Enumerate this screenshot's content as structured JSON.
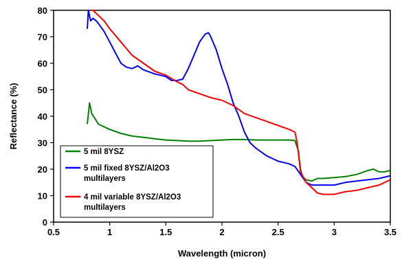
{
  "chart_data": {
    "type": "line",
    "title": "",
    "xlabel": "Wavelength (micron)",
    "ylabel": "Reflectance (%)",
    "xlim": [
      0.5,
      3.5
    ],
    "ylim": [
      0,
      80
    ],
    "xticks": [
      0.5,
      1,
      1.5,
      2,
      2.5,
      3,
      3.5
    ],
    "xtick_labels": [
      "0.5",
      "1",
      "1.5",
      "2",
      "2.5",
      "3",
      "3.5"
    ],
    "yticks": [
      0,
      10,
      20,
      30,
      40,
      50,
      60,
      70,
      80
    ],
    "ytick_labels": [
      "0",
      "10",
      "20",
      "30",
      "40",
      "50",
      "60",
      "70",
      "80"
    ],
    "grid": false,
    "legend_position": "bottom-left",
    "series": [
      {
        "name": "5 mil 8YSZ",
        "color": "#008000",
        "points": [
          [
            0.8,
            37
          ],
          [
            0.82,
            45
          ],
          [
            0.84,
            41
          ],
          [
            0.87,
            39
          ],
          [
            0.9,
            37
          ],
          [
            1.0,
            35
          ],
          [
            1.1,
            33.5
          ],
          [
            1.2,
            32.5
          ],
          [
            1.3,
            32
          ],
          [
            1.4,
            31.5
          ],
          [
            1.5,
            31
          ],
          [
            1.6,
            30.8
          ],
          [
            1.7,
            30.6
          ],
          [
            1.8,
            30.6
          ],
          [
            1.9,
            30.8
          ],
          [
            2.0,
            31
          ],
          [
            2.1,
            31.2
          ],
          [
            2.2,
            31.2
          ],
          [
            2.3,
            31
          ],
          [
            2.4,
            31
          ],
          [
            2.5,
            31
          ],
          [
            2.6,
            31
          ],
          [
            2.65,
            30.8
          ],
          [
            2.68,
            27
          ],
          [
            2.7,
            20
          ],
          [
            2.72,
            17
          ],
          [
            2.75,
            16
          ],
          [
            2.8,
            15.5
          ],
          [
            2.85,
            16.5
          ],
          [
            2.9,
            16.5
          ],
          [
            3.0,
            16.8
          ],
          [
            3.1,
            17.2
          ],
          [
            3.2,
            18
          ],
          [
            3.3,
            19.5
          ],
          [
            3.35,
            20
          ],
          [
            3.4,
            19
          ],
          [
            3.45,
            19
          ],
          [
            3.5,
            19.5
          ]
        ]
      },
      {
        "name": "5 mil fixed 8YSZ/Al2O3 multilayers",
        "color": "#0000FF",
        "points": [
          [
            0.8,
            73
          ],
          [
            0.81,
            80
          ],
          [
            0.83,
            76
          ],
          [
            0.85,
            77
          ],
          [
            0.88,
            76
          ],
          [
            0.9,
            75
          ],
          [
            0.95,
            72
          ],
          [
            1.0,
            68
          ],
          [
            1.05,
            64
          ],
          [
            1.1,
            60
          ],
          [
            1.15,
            58.5
          ],
          [
            1.2,
            58
          ],
          [
            1.25,
            59
          ],
          [
            1.3,
            57.5
          ],
          [
            1.4,
            56
          ],
          [
            1.5,
            55
          ],
          [
            1.55,
            53.5
          ],
          [
            1.6,
            53.5
          ],
          [
            1.65,
            54
          ],
          [
            1.7,
            58
          ],
          [
            1.75,
            63
          ],
          [
            1.8,
            68
          ],
          [
            1.85,
            71
          ],
          [
            1.88,
            71.5
          ],
          [
            1.9,
            70
          ],
          [
            1.95,
            65
          ],
          [
            2.0,
            58
          ],
          [
            2.05,
            52
          ],
          [
            2.1,
            45
          ],
          [
            2.15,
            40
          ],
          [
            2.2,
            34
          ],
          [
            2.25,
            30
          ],
          [
            2.3,
            28
          ],
          [
            2.4,
            25
          ],
          [
            2.5,
            23
          ],
          [
            2.6,
            22
          ],
          [
            2.65,
            21
          ],
          [
            2.7,
            18
          ],
          [
            2.75,
            15
          ],
          [
            2.8,
            14
          ],
          [
            2.9,
            14
          ],
          [
            3.0,
            14
          ],
          [
            3.1,
            15
          ],
          [
            3.2,
            15.5
          ],
          [
            3.3,
            16
          ],
          [
            3.4,
            16.5
          ],
          [
            3.5,
            17.5
          ]
        ]
      },
      {
        "name": "4 mil variable 8YSZ/Al2O3 multilayers",
        "color": "#FF0000",
        "points": [
          [
            0.83,
            80
          ],
          [
            0.85,
            80
          ],
          [
            0.9,
            78
          ],
          [
            0.95,
            76
          ],
          [
            1.0,
            73
          ],
          [
            1.1,
            68
          ],
          [
            1.2,
            63
          ],
          [
            1.3,
            60
          ],
          [
            1.4,
            57
          ],
          [
            1.5,
            55.5
          ],
          [
            1.6,
            53
          ],
          [
            1.65,
            52
          ],
          [
            1.7,
            50
          ],
          [
            1.8,
            48.5
          ],
          [
            1.9,
            47
          ],
          [
            2.0,
            46
          ],
          [
            2.1,
            44
          ],
          [
            2.2,
            41
          ],
          [
            2.3,
            39.5
          ],
          [
            2.4,
            38
          ],
          [
            2.5,
            36.5
          ],
          [
            2.6,
            35
          ],
          [
            2.65,
            34
          ],
          [
            2.67,
            30
          ],
          [
            2.7,
            19
          ],
          [
            2.75,
            15
          ],
          [
            2.8,
            13
          ],
          [
            2.85,
            11
          ],
          [
            2.9,
            10.5
          ],
          [
            3.0,
            10.5
          ],
          [
            3.1,
            11.5
          ],
          [
            3.2,
            12
          ],
          [
            3.3,
            13
          ],
          [
            3.4,
            14
          ],
          [
            3.5,
            16
          ]
        ]
      }
    ]
  }
}
